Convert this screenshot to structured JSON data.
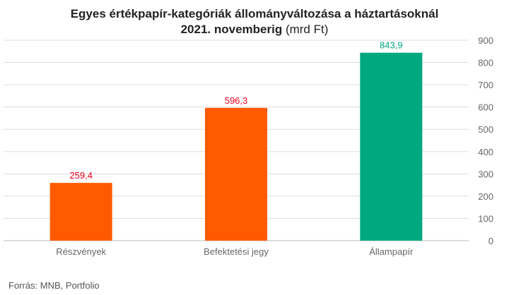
{
  "title_line1": "Egyes értékpapír-kategóriák állományváltozása a háztartásoknál",
  "title_line2_bold": "2021. novemberig",
  "title_line2_unit": "(mrd Ft)",
  "source": "Forrás: MNB, Portfolio",
  "colors": {
    "orange": "#ff5a00",
    "green": "#00a880",
    "label_red": "#e8001c",
    "grid": "#dddddd",
    "axis_text": "#666666"
  },
  "chart_data": {
    "type": "bar",
    "categories": [
      "Részvények",
      "Befektetési jegy",
      "Állampapír"
    ],
    "values": [
      259.4,
      596.3,
      843.9
    ],
    "value_labels": [
      "259,4",
      "596,3",
      "843,9"
    ],
    "bar_colors": [
      "#ff5a00",
      "#ff5a00",
      "#00a880"
    ],
    "label_colors": [
      "#e8001c",
      "#e8001c",
      "#00a880"
    ],
    "ylim": [
      0,
      900
    ],
    "yticks": [
      0,
      100,
      200,
      300,
      400,
      500,
      600,
      700,
      800,
      900
    ],
    "y_axis_position": "right",
    "grid": true,
    "xlabel": "",
    "ylabel": ""
  }
}
